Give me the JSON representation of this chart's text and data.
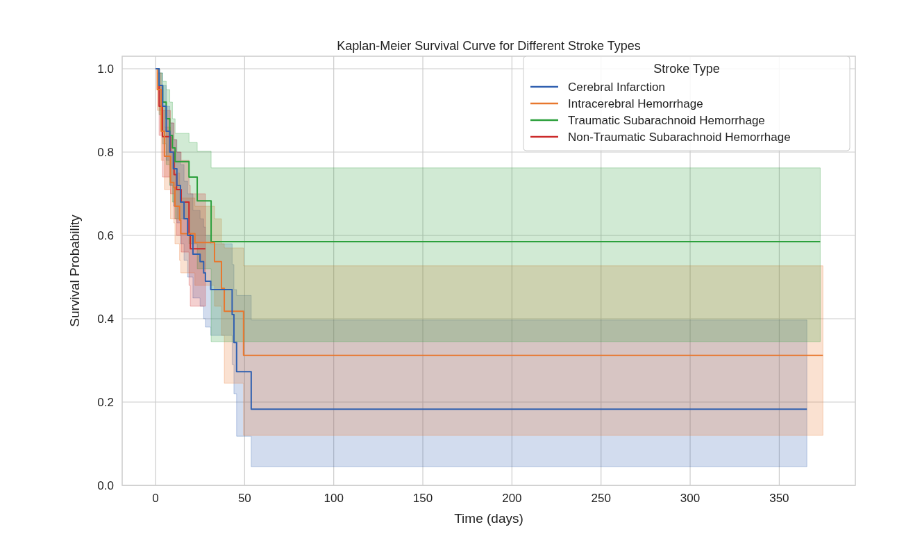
{
  "chart_data": {
    "type": "step",
    "title": "Kaplan-Meier Survival Curve for Different Stroke Types",
    "xlabel": "Time (days)",
    "ylabel": "Survival Probability",
    "legend_title": "Stroke Type",
    "legend": "top right",
    "grid": true,
    "xlim": [
      -18.7,
      392.7
    ],
    "ylim": [
      0,
      1.03
    ],
    "xticks": [
      0,
      50,
      100,
      150,
      200,
      250,
      300,
      350
    ],
    "yticks": [
      {
        "value": 0,
        "label": "0.0"
      },
      {
        "value": 0.2,
        "label": "0.2"
      },
      {
        "value": 0.4,
        "label": "0.4"
      },
      {
        "value": 0.6,
        "label": "0.6"
      },
      {
        "value": 0.8,
        "label": "0.8"
      },
      {
        "value": 1,
        "label": "1.0"
      }
    ],
    "series": [
      {
        "name": "Cerebral Infarction",
        "color": "#3060b0",
        "x": [
          0,
          2,
          4,
          6,
          8,
          10,
          12,
          14,
          16,
          18,
          21,
          25,
          27,
          28,
          31,
          43,
          44,
          45.5,
          53.7,
          365.5
        ],
        "values": [
          1,
          0.96,
          0.91,
          0.85,
          0.8,
          0.76,
          0.72,
          0.68,
          0.64,
          0.6,
          0.555,
          0.537,
          0.51,
          0.49,
          0.47,
          0.41,
          0.343,
          0.273,
          0.183,
          0.183
        ],
        "lower": [
          1,
          0.91,
          0.85,
          0.78,
          0.72,
          0.67,
          0.63,
          0.58,
          0.54,
          0.5,
          0.45,
          0.43,
          0.4,
          0.38,
          0.36,
          0.29,
          0.22,
          0.118,
          0.045,
          0.045
        ],
        "upper": [
          1,
          0.99,
          0.96,
          0.91,
          0.87,
          0.83,
          0.8,
          0.77,
          0.73,
          0.7,
          0.66,
          0.64,
          0.62,
          0.6,
          0.58,
          0.53,
          0.47,
          0.456,
          0.397,
          0.397
        ]
      },
      {
        "name": "Intracerebral Hemorrhage",
        "color": "#e8772e",
        "x": [
          0,
          1,
          3.2,
          5,
          8.4,
          10.3,
          10.9,
          13.5,
          14.2,
          22.1,
          33.1,
          37,
          38.6,
          49.4,
          374.5
        ],
        "values": [
          1,
          0.95,
          0.85,
          0.79,
          0.727,
          0.715,
          0.67,
          0.637,
          0.604,
          0.583,
          0.537,
          0.473,
          0.418,
          0.312,
          0.312
        ],
        "lower": [
          1,
          0.9,
          0.78,
          0.71,
          0.64,
          0.63,
          0.58,
          0.54,
          0.51,
          0.48,
          0.43,
          0.36,
          0.245,
          0.12,
          0.12
        ],
        "upper": [
          1,
          0.99,
          0.91,
          0.86,
          0.8,
          0.79,
          0.75,
          0.72,
          0.69,
          0.67,
          0.64,
          0.58,
          0.57,
          0.527,
          0.527
        ]
      },
      {
        "name": "Traumatic Subarachnoid Hemorrhage",
        "color": "#2ca03c",
        "x": [
          0,
          2,
          4,
          6,
          8,
          9.5,
          11,
          18.8,
          23.4,
          31.2,
          373
        ],
        "values": [
          1,
          0.96,
          0.92,
          0.88,
          0.84,
          0.81,
          0.777,
          0.74,
          0.683,
          0.585,
          0.585
        ],
        "lower": [
          1,
          0.89,
          0.82,
          0.77,
          0.72,
          0.68,
          0.64,
          0.58,
          0.52,
          0.345,
          0.345
        ],
        "upper": [
          1,
          0.99,
          0.97,
          0.95,
          0.92,
          0.88,
          0.845,
          0.823,
          0.802,
          0.762,
          0.762
        ]
      },
      {
        "name": "Non-Traumatic Subarachnoid Hemorrhage",
        "color": "#cc2a2a",
        "x": [
          0,
          2,
          3.9,
          8.4,
          10.4,
          11.8,
          14.4,
          18.8,
          19.5,
          28
        ],
        "values": [
          1,
          0.91,
          0.837,
          0.8,
          0.746,
          0.71,
          0.68,
          0.604,
          0.568,
          0.568
        ],
        "lower": [
          1,
          0.84,
          0.74,
          0.7,
          0.64,
          0.6,
          0.56,
          0.48,
          0.43,
          0.43
        ],
        "upper": [
          1,
          0.96,
          0.9,
          0.87,
          0.83,
          0.8,
          0.78,
          0.72,
          0.7,
          0.7
        ]
      }
    ]
  }
}
